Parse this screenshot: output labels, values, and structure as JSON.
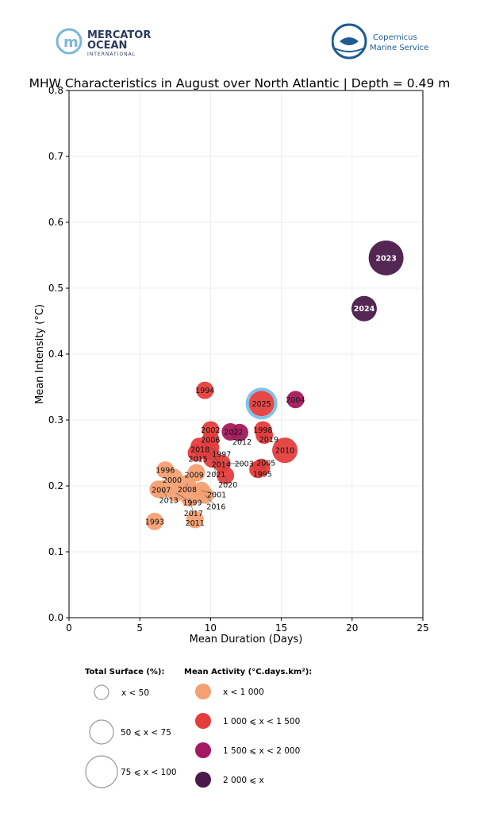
{
  "logos": {
    "mercator": {
      "line1": "MERCATOR",
      "line2": "OCEAN",
      "line3": "INTERNATIONAL"
    },
    "copernicus": {
      "line1": "Copernicus",
      "line2": "Marine Service"
    }
  },
  "chart_data": {
    "type": "scatter",
    "title": "MHW Characteristics in August over North Atlantic | Depth = 0.49 m",
    "xlabel": "Mean Duration (Days)",
    "ylabel": "Mean Intensity (°C)",
    "xlim": [
      0,
      25
    ],
    "ylim": [
      0,
      0.8
    ],
    "xticks": [
      0,
      5,
      10,
      15,
      20,
      25
    ],
    "yticks": [
      0.0,
      0.1,
      0.2,
      0.3,
      0.4,
      0.5,
      0.6,
      0.7,
      0.8
    ],
    "grid": true,
    "highlight": {
      "label": "2025",
      "ring_color": "#7ec3ee"
    },
    "size_legend": {
      "title": "Total Surface (%):",
      "items": [
        "x < 50",
        "50 ⩽ x < 75",
        "75 ⩽ x < 100"
      ]
    },
    "color_legend": {
      "title": "Mean Activity (°C.days.km²):",
      "items": [
        {
          "label": "x < 1 000",
          "color": "#f4a072"
        },
        {
          "label": "1 000 ⩽ x < 1 500",
          "color": "#e53d3d"
        },
        {
          "label": "1 500 ⩽ x < 2 000",
          "color": "#a5195e"
        },
        {
          "label": "2 000 ⩽ x",
          "color": "#4a1a4a"
        }
      ]
    },
    "points": [
      {
        "label": "2023",
        "x": 22.4,
        "y": 0.546,
        "size": 2,
        "activity": 3
      },
      {
        "label": "2024",
        "x": 20.85,
        "y": 0.469,
        "size": 1,
        "activity": 3
      },
      {
        "label": "2025",
        "x": 13.6,
        "y": 0.325,
        "size": 1,
        "activity": 1
      },
      {
        "label": "2004",
        "x": 16.0,
        "y": 0.331,
        "size": 0,
        "activity": 2
      },
      {
        "label": "1994",
        "x": 9.6,
        "y": 0.345,
        "size": 0,
        "activity": 1
      },
      {
        "label": "2010",
        "x": 15.25,
        "y": 0.254,
        "size": 1,
        "activity": 1
      },
      {
        "label": "2002",
        "x": 10.0,
        "y": 0.285,
        "size": 0,
        "activity": 1
      },
      {
        "label": "2022",
        "x": 11.4,
        "y": 0.282,
        "size": 0,
        "activity": 2
      },
      {
        "label": "2012",
        "x": 12.05,
        "y": 0.281,
        "size": 0,
        "activity": 2
      },
      {
        "label": "1998",
        "x": 13.7,
        "y": 0.285,
        "size": 0,
        "activity": 1
      },
      {
        "label": "2019",
        "x": 13.8,
        "y": 0.277,
        "size": 0,
        "activity": 1
      },
      {
        "label": "2006",
        "x": 10.0,
        "y": 0.27,
        "size": 0,
        "activity": 1
      },
      {
        "label": "2018",
        "x": 9.2,
        "y": 0.26,
        "size": 0,
        "activity": 1
      },
      {
        "label": "1997",
        "x": 10.0,
        "y": 0.258,
        "size": 0,
        "activity": 1
      },
      {
        "label": "2015",
        "x": 9.0,
        "y": 0.25,
        "size": 0,
        "activity": 1
      },
      {
        "label": "2014",
        "x": 9.8,
        "y": 0.253,
        "size": 0,
        "activity": 1
      },
      {
        "label": "2021",
        "x": 10.1,
        "y": 0.241,
        "size": 0,
        "activity": 1
      },
      {
        "label": "2003",
        "x": 10.8,
        "y": 0.234,
        "size": 0,
        "activity": 1
      },
      {
        "label": "2020",
        "x": 11.05,
        "y": 0.216,
        "size": 0,
        "activity": 1
      },
      {
        "label": "1995",
        "x": 13.35,
        "y": 0.225,
        "size": 0,
        "activity": 1
      },
      {
        "label": "2005",
        "x": 13.6,
        "y": 0.228,
        "size": 0,
        "activity": 1
      },
      {
        "label": "1996",
        "x": 6.8,
        "y": 0.224,
        "size": 0,
        "activity": 0
      },
      {
        "label": "2009",
        "x": 9.0,
        "y": 0.22,
        "size": 0,
        "activity": 0
      },
      {
        "label": "2000",
        "x": 7.4,
        "y": 0.213,
        "size": 0,
        "activity": 0
      },
      {
        "label": "2008",
        "x": 8.35,
        "y": 0.204,
        "size": 0,
        "activity": 0
      },
      {
        "label": "2007",
        "x": 6.3,
        "y": 0.195,
        "size": 0,
        "activity": 0
      },
      {
        "label": "2013",
        "x": 6.6,
        "y": 0.195,
        "size": 0,
        "activity": 0
      },
      {
        "label": "1999",
        "x": 7.55,
        "y": 0.189,
        "size": 0,
        "activity": 0
      },
      {
        "label": "2001",
        "x": 9.35,
        "y": 0.193,
        "size": 0,
        "activity": 0
      },
      {
        "label": "2016",
        "x": 9.6,
        "y": 0.186,
        "size": 0,
        "activity": 0
      },
      {
        "label": "2017",
        "x": 8.5,
        "y": 0.182,
        "size": 0,
        "activity": 0
      },
      {
        "label": "1993",
        "x": 6.05,
        "y": 0.146,
        "size": 0,
        "activity": 0
      },
      {
        "label": "2011",
        "x": 8.9,
        "y": 0.149,
        "size": 0,
        "activity": 0
      }
    ]
  }
}
